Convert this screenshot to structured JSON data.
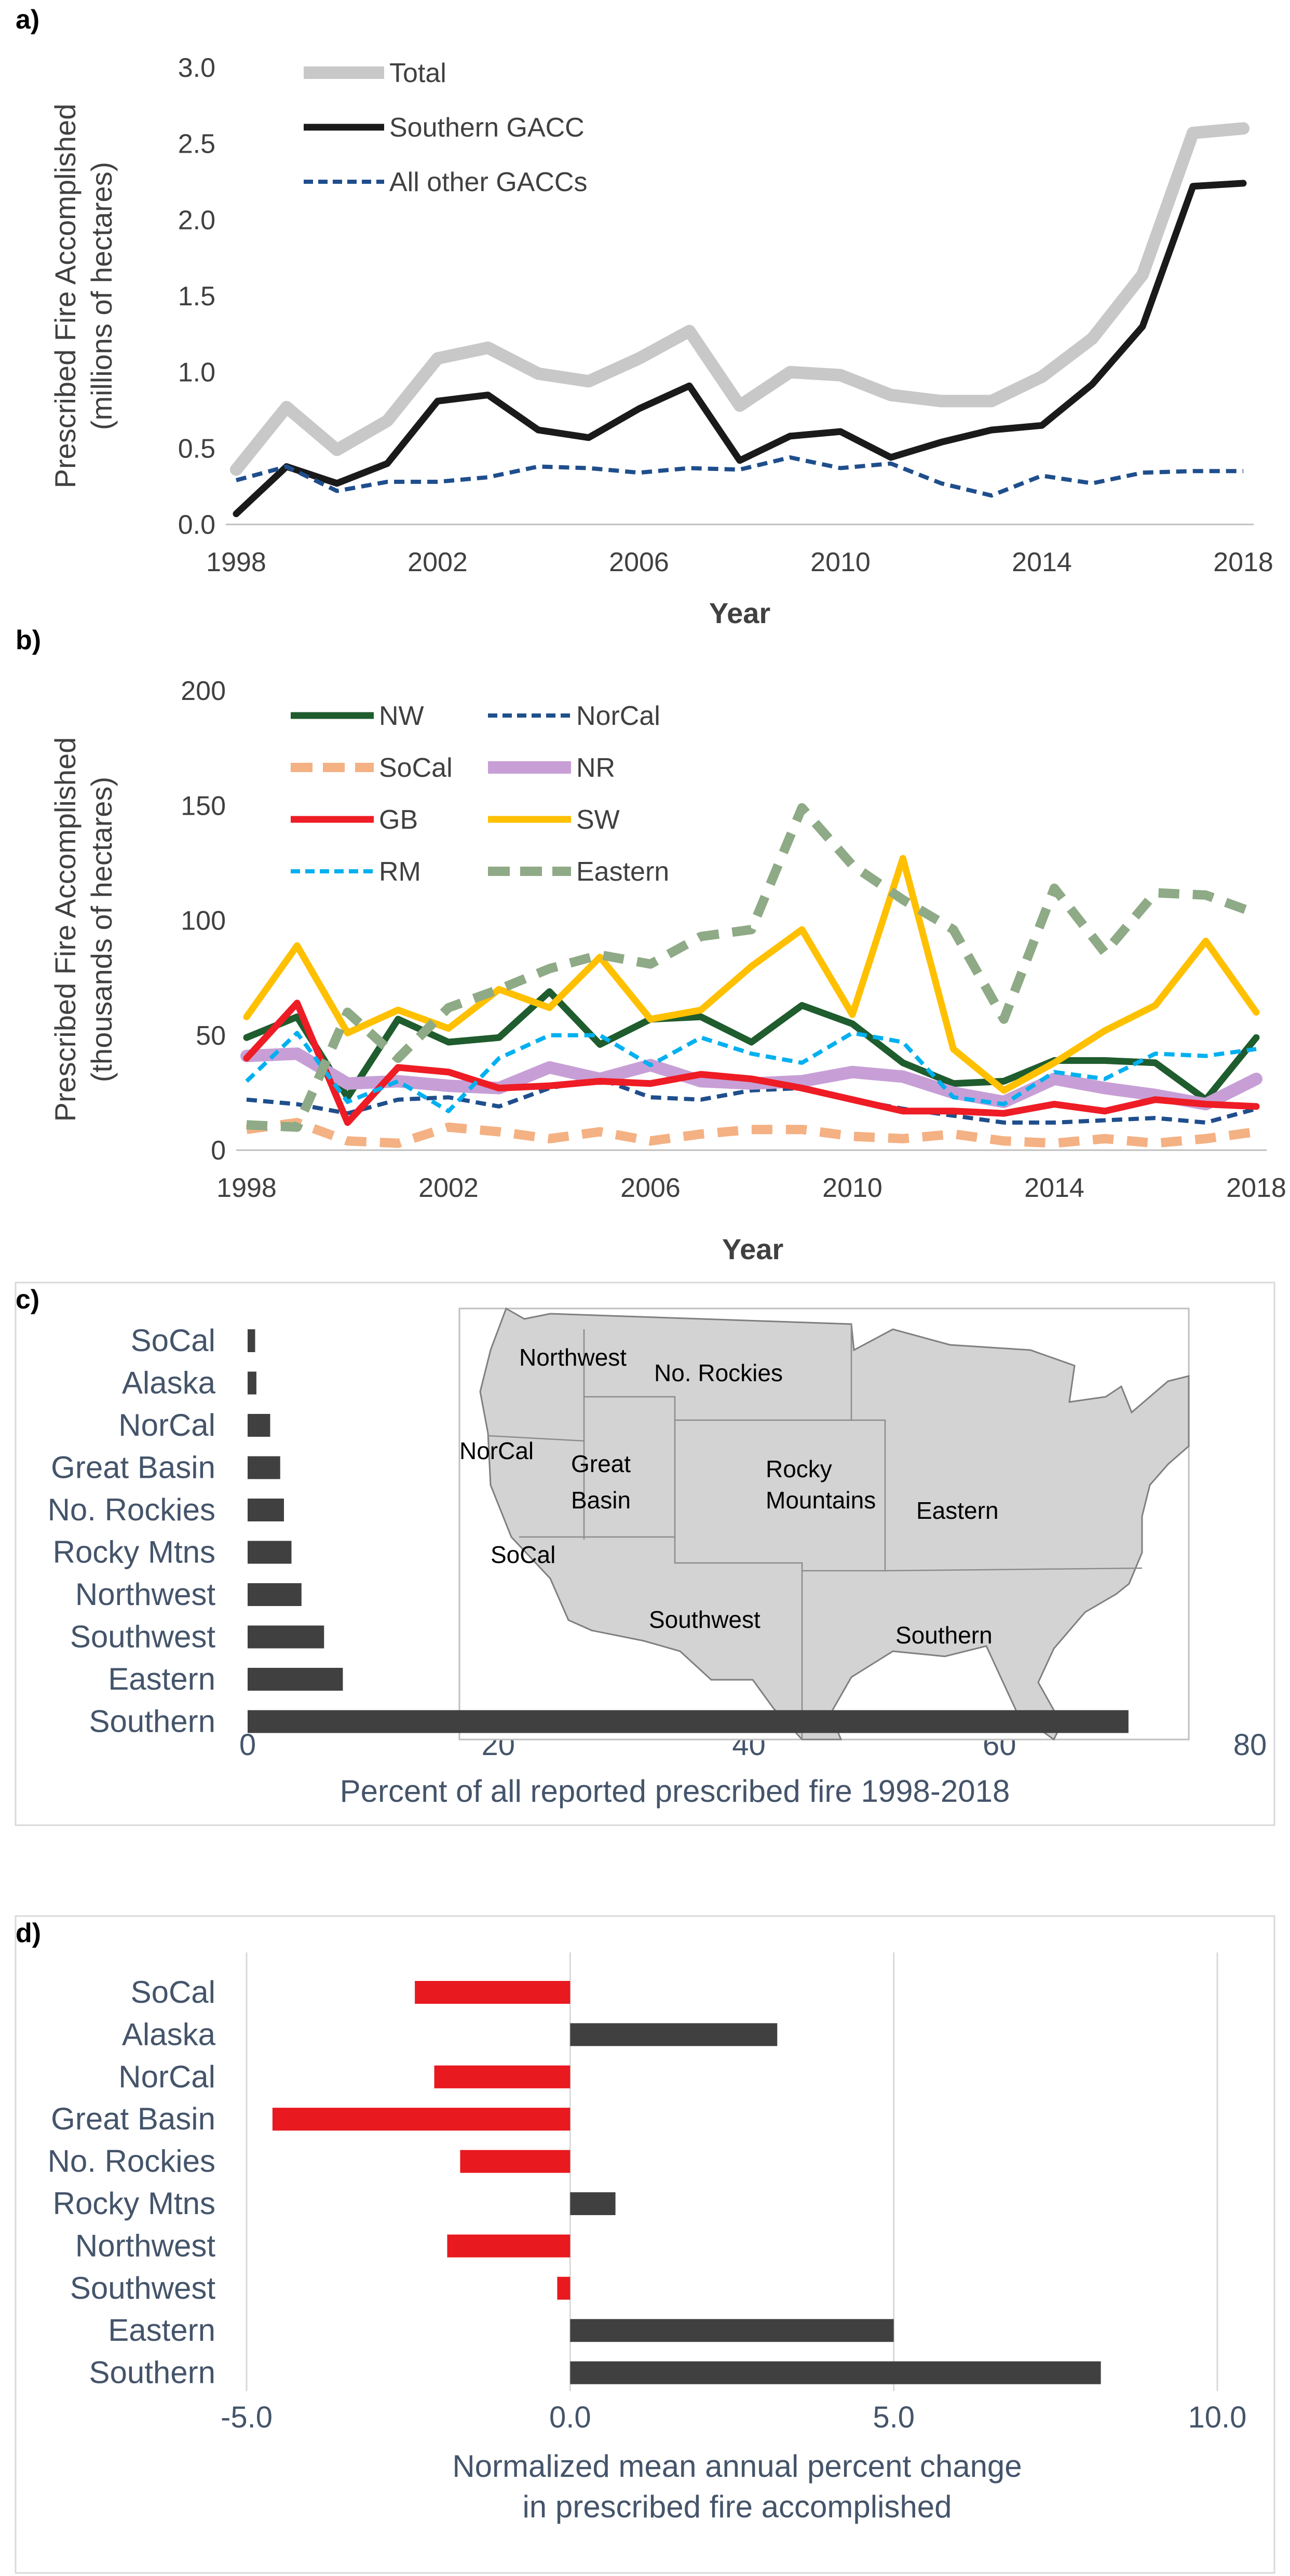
{
  "chart_data": [
    {
      "panel": "a)",
      "type": "line",
      "x": [
        1998,
        1999,
        2000,
        2001,
        2002,
        2003,
        2004,
        2005,
        2006,
        2007,
        2008,
        2009,
        2010,
        2011,
        2012,
        2013,
        2014,
        2015,
        2016,
        2017,
        2018
      ],
      "series": [
        {
          "name": "Total",
          "color": "#c8c8c8",
          "style": "solid-thick",
          "values": [
            0.36,
            0.77,
            0.49,
            0.68,
            1.09,
            1.16,
            0.99,
            0.94,
            1.09,
            1.27,
            0.78,
            1.0,
            0.98,
            0.85,
            0.81,
            0.81,
            0.97,
            1.22,
            1.64,
            2.57,
            2.6
          ]
        },
        {
          "name": "Southern GACC",
          "color": "#1a1a1a",
          "style": "solid",
          "values": [
            0.07,
            0.38,
            0.27,
            0.4,
            0.81,
            0.85,
            0.62,
            0.57,
            0.76,
            0.91,
            0.42,
            0.58,
            0.61,
            0.44,
            0.54,
            0.62,
            0.65,
            0.92,
            1.3,
            2.22,
            2.24
          ]
        },
        {
          "name": "All other GACCs",
          "color": "#1f4e8c",
          "style": "dashed",
          "values": [
            0.29,
            0.38,
            0.22,
            0.28,
            0.28,
            0.31,
            0.38,
            0.37,
            0.34,
            0.37,
            0.36,
            0.44,
            0.37,
            0.4,
            0.27,
            0.19,
            0.32,
            0.27,
            0.34,
            0.35,
            0.35
          ]
        }
      ],
      "title": "",
      "xlabel": "Year",
      "ylabel": "Prescribed Fire Accomplished",
      "ylabel2": "(millions of hectares)",
      "yticks": [
        "0.0",
        "0.5",
        "1.0",
        "1.5",
        "2.0",
        "2.5",
        "3.0"
      ],
      "xticks": [
        "1998",
        "2002",
        "2006",
        "2010",
        "2014",
        "2018"
      ],
      "ylim": [
        0,
        3.0
      ],
      "legend_position": "top-left"
    },
    {
      "panel": "b)",
      "type": "line",
      "x": [
        1998,
        1999,
        2000,
        2001,
        2002,
        2003,
        2004,
        2005,
        2006,
        2007,
        2008,
        2009,
        2010,
        2011,
        2012,
        2013,
        2014,
        2015,
        2016,
        2017,
        2018
      ],
      "series": [
        {
          "name": "NW",
          "color": "#1f5c2e",
          "style": "solid",
          "values": [
            49,
            58,
            23,
            57,
            47,
            49,
            69,
            46,
            57,
            58,
            47,
            63,
            55,
            38,
            29,
            30,
            39,
            39,
            38,
            22,
            49
          ]
        },
        {
          "name": "NorCal",
          "color": "#1f4e8c",
          "style": "dashed",
          "values": [
            22,
            20,
            16,
            22,
            23,
            19,
            27,
            31,
            23,
            22,
            26,
            27,
            22,
            18,
            15,
            12,
            12,
            13,
            14,
            12,
            18
          ]
        },
        {
          "name": "SoCal",
          "color": "#f4b183",
          "style": "dashed-thick",
          "values": [
            9,
            12,
            4,
            3,
            10,
            8,
            5,
            8,
            4,
            7,
            9,
            9,
            6,
            5,
            7,
            4,
            3,
            5,
            3,
            5,
            8
          ]
        },
        {
          "name": "NR",
          "color": "#c79fd6",
          "style": "solid-thick",
          "values": [
            41,
            42,
            29,
            30,
            28,
            27,
            36,
            31,
            37,
            30,
            29,
            30,
            34,
            32,
            25,
            21,
            31,
            27,
            24,
            20,
            31
          ]
        },
        {
          "name": "GB",
          "color": "#ee1c25",
          "style": "solid",
          "values": [
            40,
            64,
            12,
            36,
            34,
            27,
            28,
            30,
            29,
            33,
            31,
            27,
            22,
            17,
            17,
            16,
            20,
            17,
            22,
            20,
            19
          ]
        },
        {
          "name": "SW",
          "color": "#ffc000",
          "style": "solid",
          "values": [
            58,
            89,
            51,
            61,
            53,
            70,
            62,
            84,
            57,
            61,
            80,
            96,
            59,
            127,
            44,
            26,
            38,
            52,
            63,
            91,
            60
          ]
        },
        {
          "name": "RM",
          "color": "#00b0f0",
          "style": "dashed",
          "values": [
            30,
            51,
            21,
            30,
            17,
            40,
            50,
            50,
            37,
            49,
            42,
            38,
            51,
            47,
            23,
            20,
            34,
            31,
            42,
            41,
            44
          ]
        },
        {
          "name": "Eastern",
          "color": "#8faa86",
          "style": "dashed-thick",
          "values": [
            11,
            10,
            60,
            40,
            62,
            70,
            79,
            85,
            81,
            93,
            96,
            149,
            124,
            109,
            96,
            57,
            114,
            86,
            112,
            111,
            103
          ]
        }
      ],
      "title": "",
      "xlabel": "Year",
      "ylabel": "Prescribed Fire Accomplished",
      "ylabel2": "(thousands of hectares)",
      "yticks": [
        "0",
        "50",
        "100",
        "150",
        "200"
      ],
      "xticks": [
        "1998",
        "2002",
        "2006",
        "2010",
        "2014",
        "2018"
      ],
      "ylim": [
        0,
        200
      ],
      "legend_position": "top-left"
    },
    {
      "panel": "c)",
      "type": "bar",
      "orientation": "horizontal",
      "categories": [
        "SoCal",
        "Alaska",
        "NorCal",
        "Great Basin",
        "No. Rockies",
        "Rocky Mtns",
        "Northwest",
        "Southwest",
        "Eastern",
        "Southern"
      ],
      "values": [
        0.6,
        0.7,
        1.8,
        2.6,
        2.9,
        3.5,
        4.3,
        6.1,
        7.6,
        70.3
      ],
      "color": "#404040",
      "xlabel": "Percent of all reported prescribed fire 1998-2018",
      "xticks": [
        "0",
        "20",
        "40",
        "60",
        "80"
      ],
      "xlim": [
        0,
        80
      ],
      "inset_map": {
        "region_labels": [
          "Northwest",
          "No. Rockies",
          "NorCal",
          "Great",
          "Basin",
          "Rocky",
          "Mountains",
          "Eastern",
          "SoCal",
          "Southwest",
          "Southern"
        ]
      }
    },
    {
      "panel": "d)",
      "type": "bar",
      "orientation": "horizontal",
      "categories": [
        "SoCal",
        "Alaska",
        "NorCal",
        "Great Basin",
        "No. Rockies",
        "Rocky Mtns",
        "Northwest",
        "Southwest",
        "Eastern",
        "Southern"
      ],
      "values": [
        -2.4,
        3.2,
        -2.1,
        -4.6,
        -1.7,
        0.7,
        -1.9,
        -0.2,
        5.0,
        8.2
      ],
      "positive_color": "#404040",
      "negative_color": "#e8191f",
      "xlabel": "Normalized mean annual percent change",
      "xlabel2": "in prescribed fire accomplished",
      "xticks": [
        "-5.0",
        "0.0",
        "5.0",
        "10.0"
      ],
      "xlim": [
        -5,
        10
      ]
    }
  ]
}
